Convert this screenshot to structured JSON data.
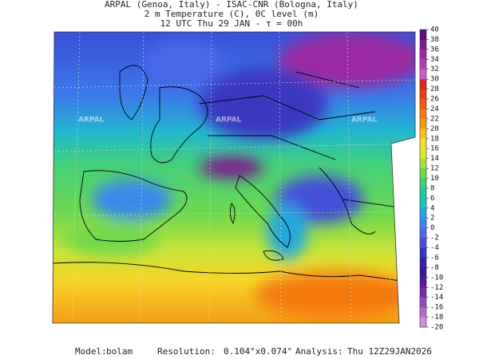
{
  "header": {
    "lines": [
      "ARPAL (Genoa, Italy)  -  ISAC-CNR (Bologna, Italy)",
      "2 m Temperature (C), 0C level (m)",
      "12 UTC Thu 29 JAN  -  τ = 00h"
    ]
  },
  "colorbar": {
    "ticks": [
      40,
      38,
      36,
      34,
      32,
      30,
      28,
      26,
      24,
      22,
      20,
      18,
      16,
      14,
      12,
      10,
      8,
      6,
      4,
      2,
      0,
      -2,
      -4,
      -6,
      -8,
      -10,
      -12,
      -14,
      -16,
      -18,
      -20
    ],
    "colors": [
      "#5b0f78",
      "#7a1c8e",
      "#9a2aa2",
      "#b63cb2",
      "#cf5cc4",
      "#d8281e",
      "#e8401a",
      "#f05a14",
      "#f47a10",
      "#f89a10",
      "#fbbd18",
      "#f6dc28",
      "#d8ea30",
      "#a8e040",
      "#6fd84e",
      "#3fd070",
      "#24c8a0",
      "#1cc0c8",
      "#20a8e0",
      "#3a88ec",
      "#4a68e8",
      "#4450d8",
      "#3a38c0",
      "#3224a8",
      "#3a1898",
      "#5a1a9a",
      "#7a2aa8",
      "#9a48b8",
      "#b868c8",
      "#d090d8"
    ]
  },
  "watermark": "ARPAL",
  "footer": [
    {
      "label": "Model:",
      "value": "bolam"
    },
    {
      "label": "Resolution:",
      "value": "0.104°x0.074°"
    },
    {
      "label": "Analysis:",
      "value": "Thu 12Z29JAN2026"
    }
  ]
}
